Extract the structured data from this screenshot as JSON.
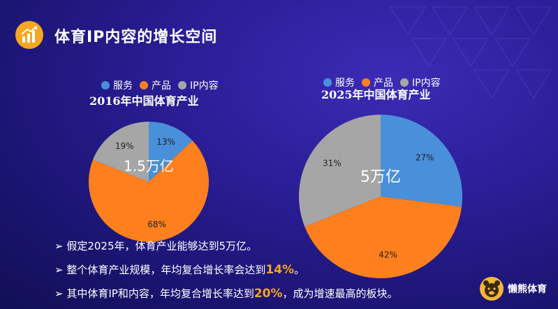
{
  "page": {
    "title": "体育IP内容的增长空间",
    "logo_text": "懒熊体育",
    "icon": "growth-chart-icon"
  },
  "colors": {
    "service": "#4a8fd9",
    "product": "#fd7f1d",
    "ip": "#a6a6a6",
    "accent": "#f5a623"
  },
  "legend_labels": [
    "服务",
    "产品",
    "IP内容"
  ],
  "bullets": [
    {
      "parts": [
        "假定2025年，体育产业能够达到5万亿。"
      ]
    },
    {
      "parts": [
        "整个体育产业规模，年均复合增长率会达到",
        "14%",
        "。"
      ]
    },
    {
      "parts": [
        "其中体育IP和内容，年均复合增长率达到",
        "20%",
        "，成为增速最高的板块。"
      ]
    }
  ],
  "chart_data": [
    {
      "type": "pie",
      "title": "2016年中国体育产业",
      "center_label": "1.5万亿",
      "categories": [
        "服务",
        "产品",
        "IP内容"
      ],
      "values": [
        13,
        68,
        19
      ],
      "value_labels": [
        "13%",
        "68%",
        "19%"
      ],
      "legend": "top"
    },
    {
      "type": "pie",
      "title": "2025年中国体育产业",
      "center_label": "5万亿",
      "categories": [
        "服务",
        "产品",
        "IP内容"
      ],
      "values": [
        27,
        42,
        31
      ],
      "value_labels": [
        "27%",
        "42%",
        "31%"
      ],
      "legend": "top"
    }
  ]
}
